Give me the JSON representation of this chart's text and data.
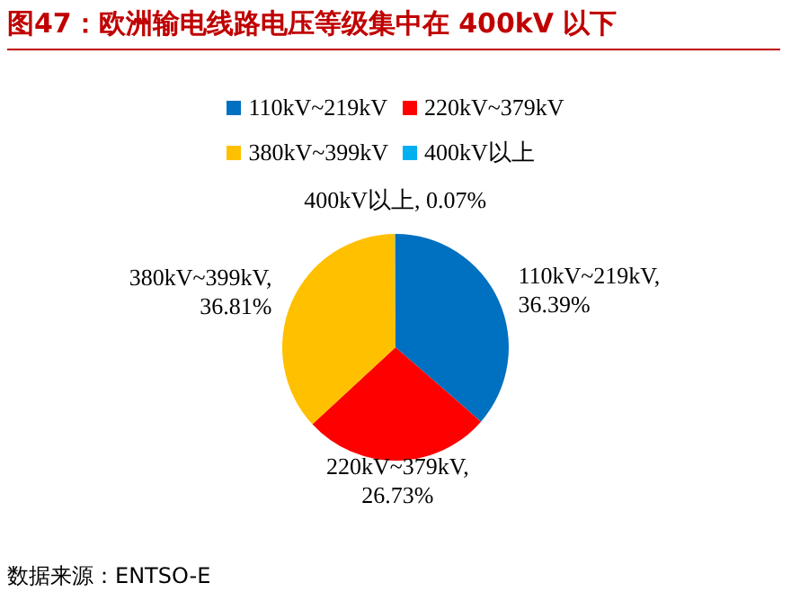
{
  "chart_data": {
    "type": "pie",
    "title": "图47：欧洲输电线路电压等级集中在 400kV 以下",
    "categories": [
      "110kV~219kV",
      "220kV~379kV",
      "380kV~399kV",
      "400kV以上"
    ],
    "values": [
      36.39,
      26.73,
      36.81,
      0.07
    ],
    "colors": [
      "#0070c0",
      "#ff0000",
      "#ffc000",
      "#00b0f0"
    ],
    "value_labels": [
      "110kV~219kV, 36.39%",
      "220kV~379kV, 26.73%",
      "380kV~399kV, 36.81%",
      "400kV以上, 0.07%"
    ],
    "legend": "top",
    "annotations": [
      "数据来源：ENTSO-E"
    ]
  }
}
